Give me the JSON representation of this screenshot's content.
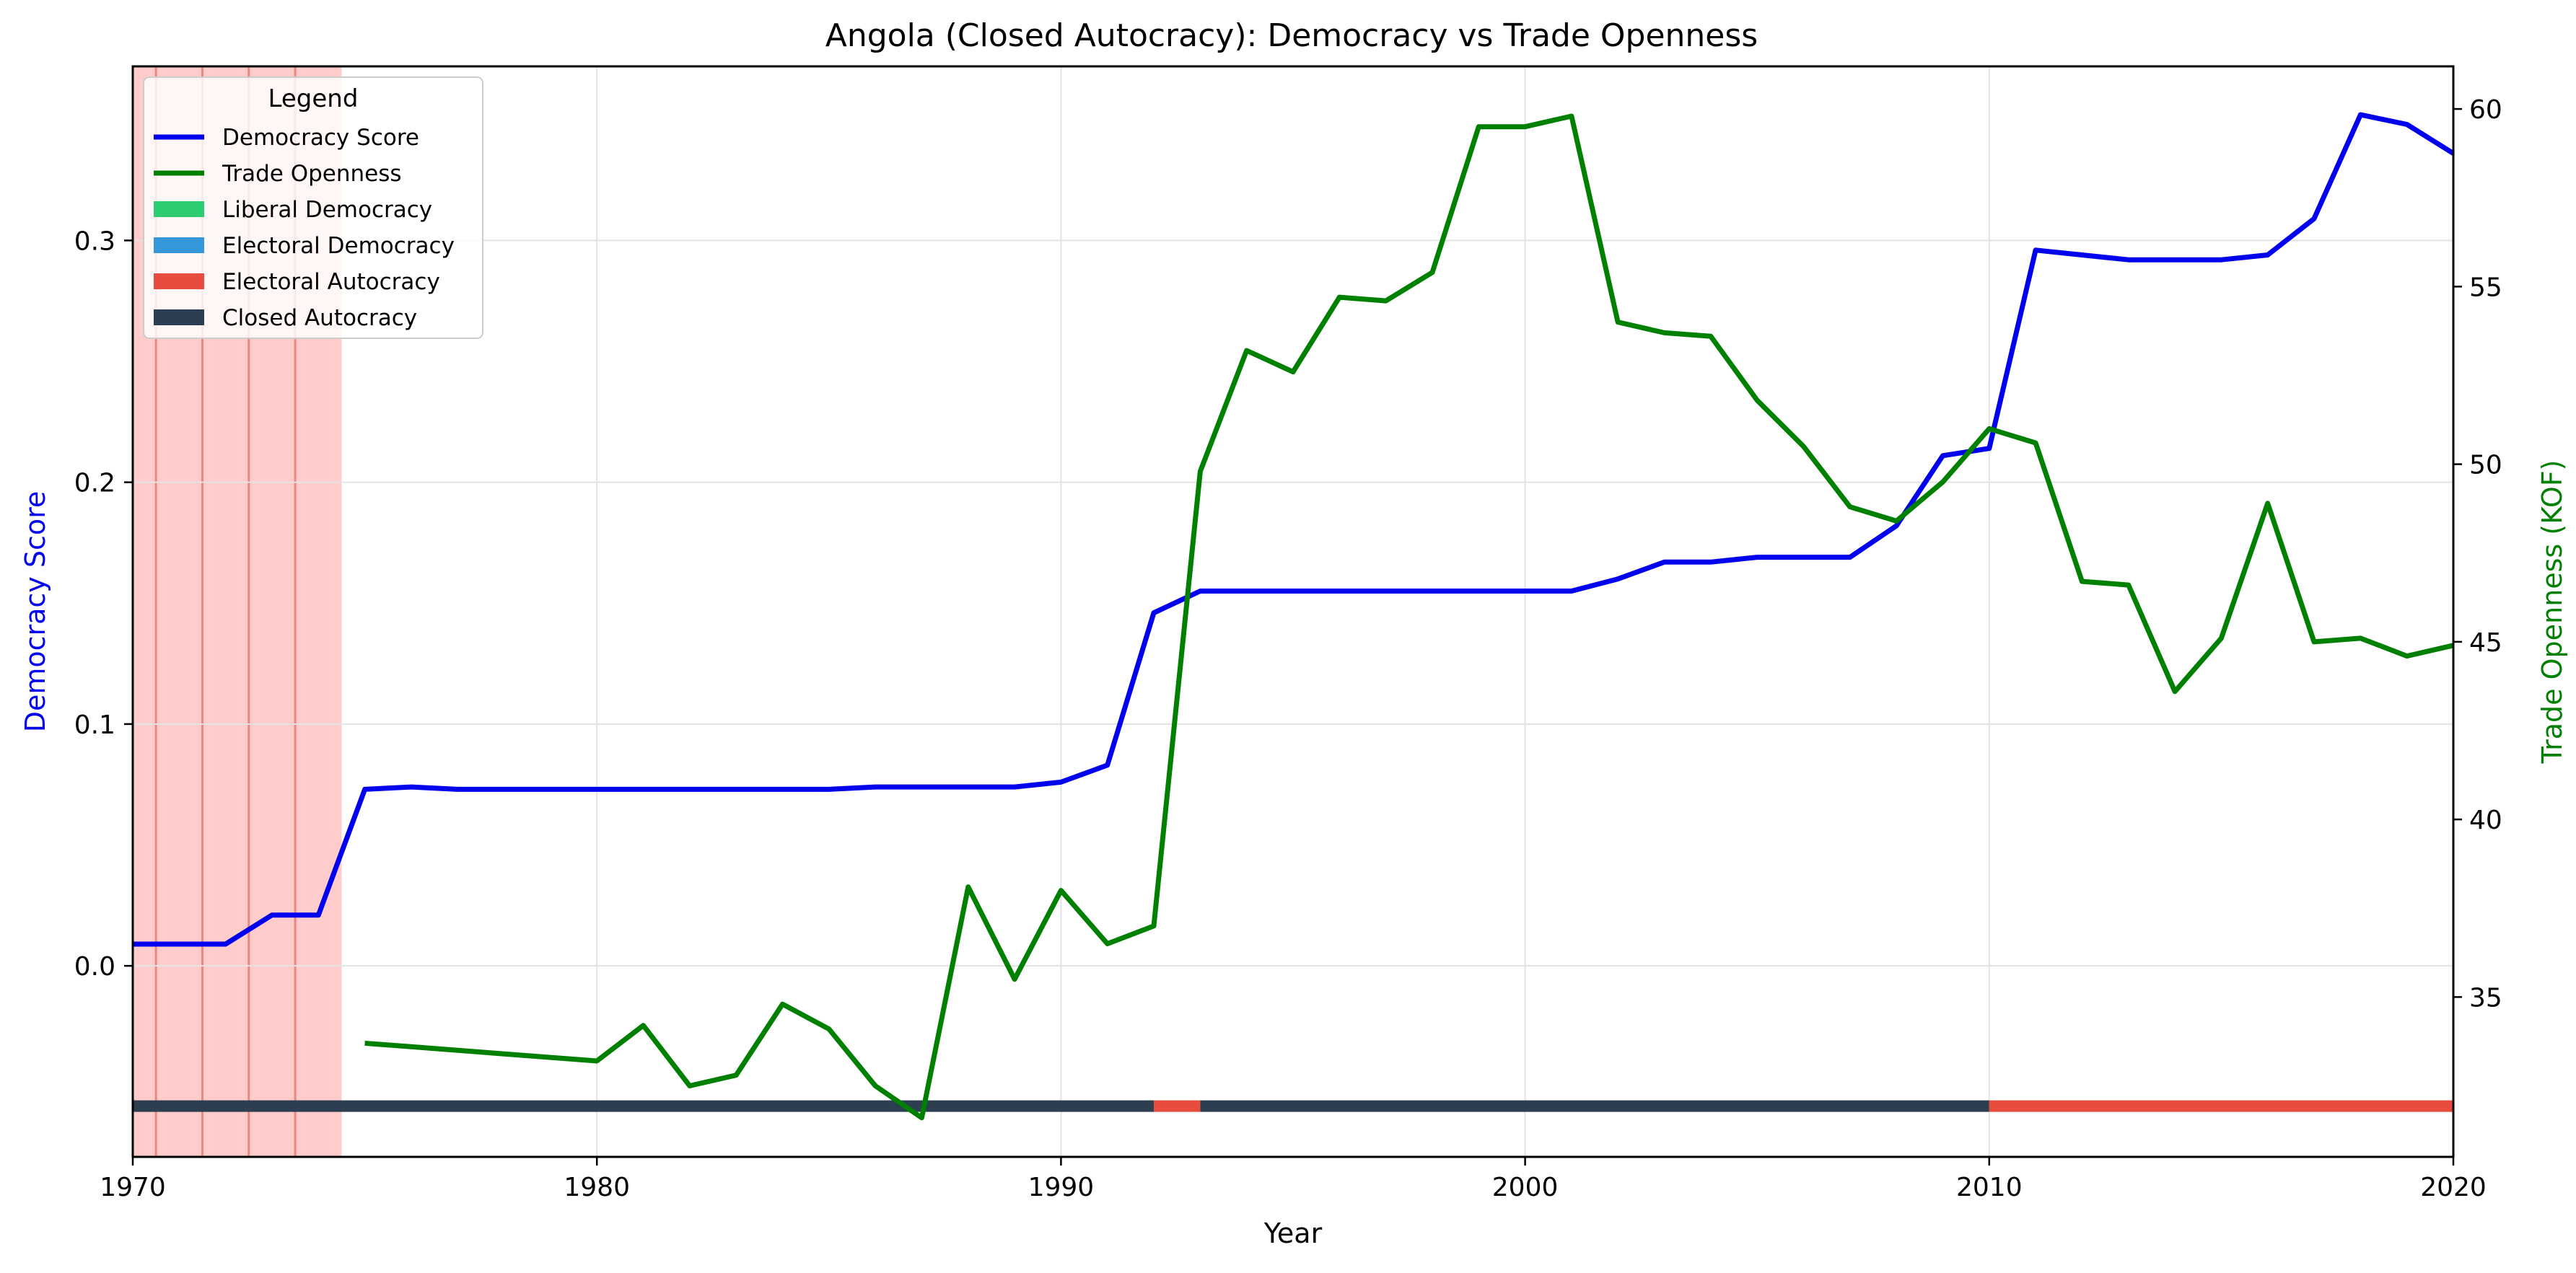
{
  "chart_data": {
    "type": "line",
    "title": "Angola (Closed Autocracy): Democracy vs Trade Openness",
    "xlabel": "Year",
    "ylabel_left": "Democracy Score",
    "ylabel_right": "Trade Openness (KOF)",
    "xlim": [
      1970,
      2020
    ],
    "ylim_left": [
      -0.079,
      0.372
    ],
    "ylim_right": [
      30.5,
      61.2
    ],
    "x_ticks": [
      1970,
      1980,
      1990,
      2000,
      2010,
      2020
    ],
    "y_left_ticks": [
      0.0,
      0.1,
      0.2,
      0.3
    ],
    "y_left_tick_labels": [
      "0.0",
      "0.1",
      "0.2",
      "0.3"
    ],
    "y_right_ticks": [
      35,
      40,
      45,
      50,
      55,
      60
    ],
    "grid": true,
    "legend": {
      "title": "Legend",
      "placement": "top-left",
      "entries": [
        {
          "label": "Democracy Score",
          "kind": "line",
          "color": "#0000ee"
        },
        {
          "label": "Trade Openness",
          "kind": "line",
          "color": "#008000"
        },
        {
          "label": "Liberal Democracy",
          "kind": "patch",
          "color": "#2ecc71"
        },
        {
          "label": "Electoral Democracy",
          "kind": "patch",
          "color": "#3498db"
        },
        {
          "label": "Electoral Autocracy",
          "kind": "patch",
          "color": "#e74c3c"
        },
        {
          "label": "Closed Autocracy",
          "kind": "patch",
          "color": "#2c3e50"
        }
      ]
    },
    "series": [
      {
        "name": "Democracy Score",
        "axis": "left",
        "color": "#0000ee",
        "x": [
          1970,
          1971,
          1972,
          1973,
          1974,
          1975,
          1976,
          1977,
          1978,
          1979,
          1980,
          1981,
          1982,
          1983,
          1984,
          1985,
          1986,
          1987,
          1988,
          1989,
          1990,
          1991,
          1992,
          1993,
          1994,
          1995,
          1996,
          1997,
          1998,
          1999,
          2000,
          2001,
          2002,
          2003,
          2004,
          2005,
          2006,
          2007,
          2008,
          2009,
          2010,
          2011,
          2012,
          2013,
          2014,
          2015,
          2016,
          2017,
          2018,
          2019,
          2020
        ],
        "values": [
          0.009,
          0.009,
          0.009,
          0.021,
          0.021,
          0.073,
          0.074,
          0.073,
          0.073,
          0.073,
          0.073,
          0.073,
          0.073,
          0.073,
          0.073,
          0.073,
          0.074,
          0.074,
          0.074,
          0.074,
          0.076,
          0.083,
          0.146,
          0.155,
          0.155,
          0.155,
          0.155,
          0.155,
          0.155,
          0.155,
          0.155,
          0.155,
          0.16,
          0.167,
          0.167,
          0.169,
          0.169,
          0.169,
          0.182,
          0.211,
          0.214,
          0.296,
          0.294,
          0.292,
          0.292,
          0.292,
          0.294,
          0.309,
          0.352,
          0.348,
          0.336
        ]
      },
      {
        "name": "Trade Openness",
        "axis": "right",
        "color": "#008000",
        "x": [
          1975,
          1976,
          1977,
          1978,
          1979,
          1980,
          1981,
          1982,
          1983,
          1984,
          1985,
          1986,
          1987,
          1988,
          1989,
          1990,
          1991,
          1992,
          1993,
          1994,
          1995,
          1996,
          1997,
          1998,
          1999,
          2000,
          2001,
          2002,
          2003,
          2004,
          2005,
          2006,
          2007,
          2008,
          2009,
          2010,
          2011,
          2012,
          2013,
          2014,
          2015,
          2016,
          2017,
          2018,
          2019,
          2020
        ],
        "values": [
          33.7,
          33.6,
          33.5,
          33.4,
          33.3,
          33.2,
          34.2,
          32.5,
          32.8,
          34.8,
          34.1,
          32.5,
          31.6,
          38.1,
          35.5,
          38.0,
          36.5,
          37.0,
          49.8,
          53.2,
          52.6,
          54.7,
          54.6,
          55.4,
          59.5,
          59.5,
          59.8,
          54.0,
          53.7,
          53.6,
          51.8,
          50.5,
          48.8,
          48.4,
          49.5,
          51.0,
          50.6,
          46.7,
          46.6,
          43.6,
          45.1,
          48.9,
          45.0,
          45.1,
          44.6,
          44.9
        ]
      }
    ],
    "shaded_regions": [
      {
        "start": 1970,
        "end": 1974.5,
        "color": "#ff0000",
        "opacity": 0.2
      }
    ],
    "shaded_region_lines": [
      1970.5,
      1971.5,
      1972.5,
      1973.5
    ],
    "regime_bar": {
      "y_value": -0.058,
      "segments": [
        {
          "start": 1970,
          "end": 1992,
          "regime": "Closed Autocracy",
          "color": "#2c3e50"
        },
        {
          "start": 1992,
          "end": 1993,
          "regime": "Electoral Autocracy",
          "color": "#e74c3c"
        },
        {
          "start": 1993,
          "end": 2010,
          "regime": "Closed Autocracy",
          "color": "#2c3e50"
        },
        {
          "start": 2010,
          "end": 2020,
          "regime": "Electoral Autocracy",
          "color": "#e74c3c"
        }
      ]
    }
  }
}
